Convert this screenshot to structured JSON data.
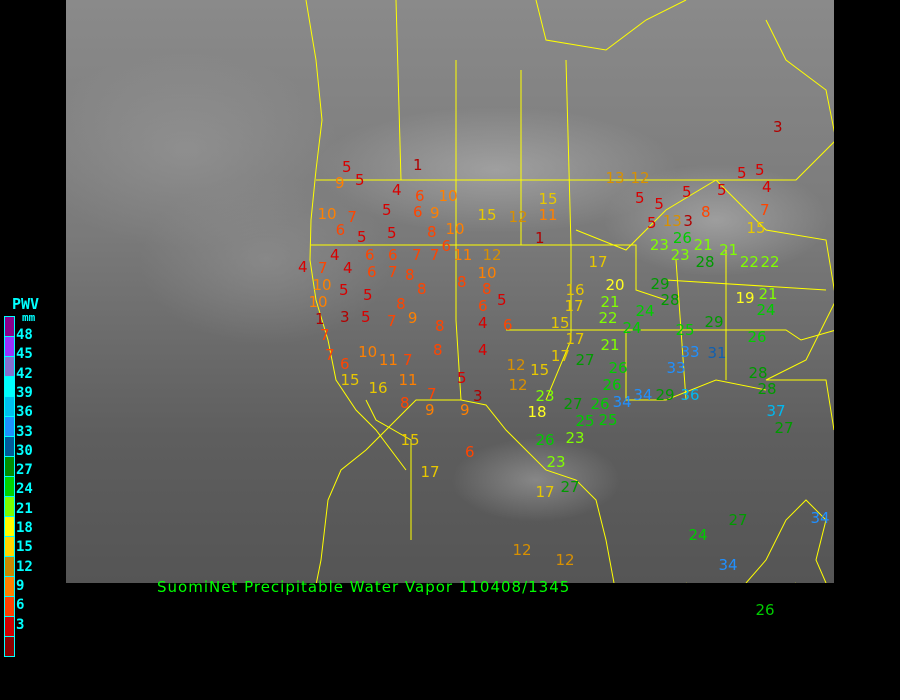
{
  "title": "SuomiNet Precipitable Water Vapor 110408/1345",
  "legend": {
    "title": "PWV",
    "unit": "mm",
    "ticks": [
      "48",
      "45",
      "42",
      "39",
      "36",
      "33",
      "30",
      "27",
      "24",
      "21",
      "18",
      "15",
      "12",
      "9",
      "6",
      "3"
    ],
    "colors": [
      "#8b008b",
      "#9932ff",
      "#8470d0",
      "#00ffff",
      "#00bfef",
      "#1e90ff",
      "#005a9a",
      "#008c00",
      "#00d200",
      "#7cff00",
      "#ffff00",
      "#ffd700",
      "#c88a00",
      "#ff8000",
      "#ff4000",
      "#d00000",
      "#8b0000"
    ]
  },
  "border_color": "#ffff00",
  "stations": [
    1,
    9,
    5,
    5,
    4,
    6,
    10,
    10,
    7,
    5,
    6,
    9,
    15,
    12,
    11,
    15,
    13,
    12,
    5,
    5,
    5,
    5,
    4,
    3,
    7,
    5,
    5,
    5,
    13,
    3,
    8,
    15,
    6,
    5,
    5,
    8,
    10,
    6,
    1,
    4,
    4,
    6,
    6,
    7,
    7,
    11,
    12,
    7,
    4,
    6,
    7,
    8,
    10,
    5,
    5,
    8,
    8,
    10,
    8,
    10,
    3,
    5,
    8,
    9,
    7,
    8,
    4,
    5,
    6,
    6,
    1,
    7,
    7,
    6,
    10,
    11,
    7,
    8,
    4,
    5,
    3,
    15,
    16,
    11,
    8,
    7,
    9,
    9,
    15,
    17,
    6,
    12,
    12,
    15,
    17,
    15,
    17,
    16,
    17,
    23,
    18,
    27,
    26,
    25,
    25,
    34,
    26,
    26,
    27,
    21,
    22,
    24,
    21,
    20,
    17,
    29,
    28,
    24,
    25,
    33,
    33,
    31,
    29,
    19,
    21,
    24,
    26,
    28,
    28,
    29,
    36,
    34,
    23,
    23,
    21,
    28,
    21,
    22,
    22,
    26,
    26,
    23,
    23,
    17,
    27,
    12,
    12,
    24,
    27,
    34,
    26,
    34,
    27,
    37
  ]
}
